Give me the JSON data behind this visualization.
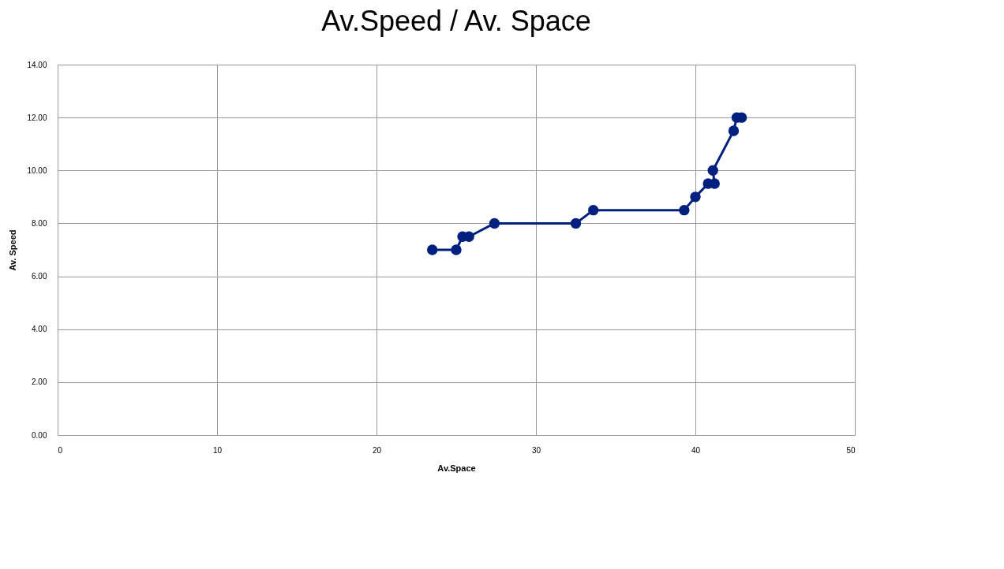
{
  "chart_data": {
    "type": "line",
    "title": "Av.Speed / Av. Space",
    "xlabel": "Av.Space",
    "ylabel": "Av. Speed",
    "x": [
      23.5,
      25.0,
      25.4,
      25.8,
      27.4,
      32.5,
      33.6,
      39.3,
      40.0,
      40.8,
      41.2,
      41.1,
      42.4,
      42.6,
      42.9
    ],
    "series": [
      {
        "color": "#002080",
        "values": [
          7.0,
          7.0,
          7.5,
          7.5,
          8.0,
          8.0,
          8.5,
          8.5,
          9.0,
          9.5,
          9.5,
          10.0,
          11.5,
          12.0,
          12.0
        ]
      }
    ],
    "xlim": [
      0,
      50
    ],
    "xticks": [
      0,
      10,
      20,
      30,
      40,
      50
    ],
    "ylim": [
      0,
      14
    ],
    "yticks": [
      {
        "value": 0,
        "label": "0.00"
      },
      {
        "value": 2,
        "label": "2.00"
      },
      {
        "value": 4,
        "label": "4.00"
      },
      {
        "value": 6,
        "label": "6.00"
      },
      {
        "value": 8,
        "label": "8.00"
      },
      {
        "value": 10,
        "label": "10.00"
      },
      {
        "value": 12,
        "label": "12.00"
      },
      {
        "value": 14,
        "label": "14.00"
      }
    ],
    "grid": true,
    "marker": "circle",
    "line_style": "solid"
  }
}
